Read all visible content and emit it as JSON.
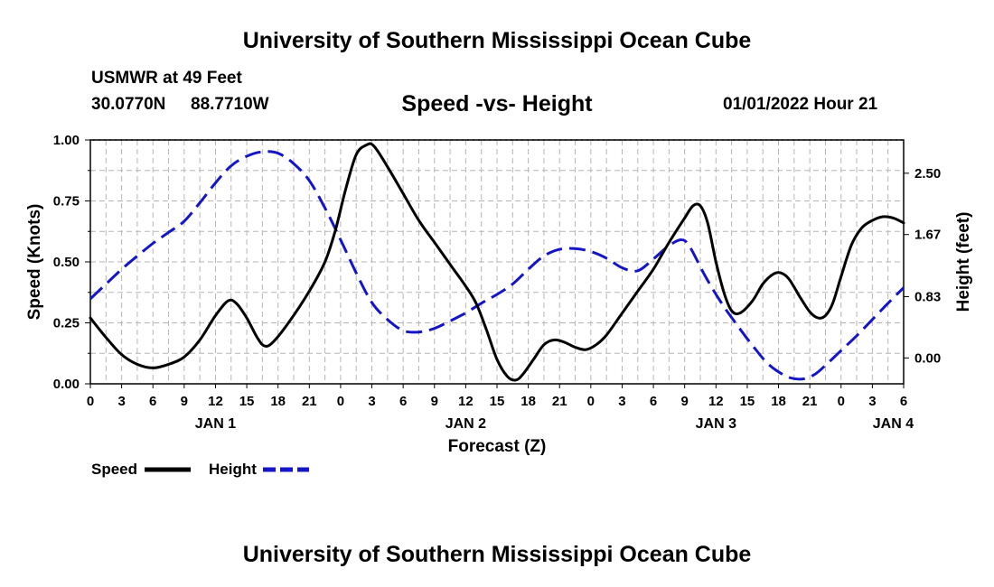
{
  "header": {
    "title": "University of Southern Mississippi Ocean Cube",
    "footer_title": "University of Southern Mississippi Ocean Cube",
    "station_name": "USMWR at 49 Feet",
    "station_lat": "30.0770N",
    "station_lon": "88.7710W",
    "subtitle": "Speed -vs- Height",
    "date": "01/01/2022 Hour 21"
  },
  "chart_data": {
    "type": "line",
    "title": "Speed -vs- Height",
    "xlabel": "Forecast (Z)",
    "ylabel": "Speed (Knots)",
    "y2label": "Height (feet)",
    "x_unit": "hours from 01/01 00Z",
    "xlim": [
      0,
      78
    ],
    "ylim": [
      0,
      1
    ],
    "y2lim": [
      -0.35,
      2.95
    ],
    "grid": true,
    "x_ticks": [
      {
        "x": 0,
        "label": "0"
      },
      {
        "x": 3,
        "label": "3"
      },
      {
        "x": 6,
        "label": "6"
      },
      {
        "x": 9,
        "label": "9"
      },
      {
        "x": 12,
        "label": "12"
      },
      {
        "x": 15,
        "label": "15"
      },
      {
        "x": 18,
        "label": "18"
      },
      {
        "x": 21,
        "label": "21"
      },
      {
        "x": 24,
        "label": "0"
      },
      {
        "x": 27,
        "label": "3"
      },
      {
        "x": 30,
        "label": "6"
      },
      {
        "x": 33,
        "label": "9"
      },
      {
        "x": 36,
        "label": "12"
      },
      {
        "x": 39,
        "label": "15"
      },
      {
        "x": 42,
        "label": "18"
      },
      {
        "x": 45,
        "label": "21"
      },
      {
        "x": 48,
        "label": "0"
      },
      {
        "x": 51,
        "label": "3"
      },
      {
        "x": 54,
        "label": "6"
      },
      {
        "x": 57,
        "label": "9"
      },
      {
        "x": 60,
        "label": "12"
      },
      {
        "x": 63,
        "label": "15"
      },
      {
        "x": 66,
        "label": "18"
      },
      {
        "x": 69,
        "label": "21"
      },
      {
        "x": 72,
        "label": "0"
      },
      {
        "x": 75,
        "label": "3"
      },
      {
        "x": 78,
        "label": "6"
      }
    ],
    "day_labels": [
      {
        "x": 12,
        "label": "JAN 1"
      },
      {
        "x": 36,
        "label": "JAN 2"
      },
      {
        "x": 60,
        "label": "JAN 3"
      },
      {
        "x": 77,
        "label": "JAN 4"
      }
    ],
    "y_ticks": [
      {
        "value": 0,
        "label": "0.00"
      },
      {
        "value": 0.25,
        "label": "0.25"
      },
      {
        "value": 0.5,
        "label": "0.50"
      },
      {
        "value": 0.75,
        "label": "0.75"
      },
      {
        "value": 1,
        "label": "1.00"
      }
    ],
    "y2_ticks": [
      {
        "value": 0,
        "label": "0.00"
      },
      {
        "value": 0.83,
        "label": "0.83"
      },
      {
        "value": 1.67,
        "label": "1.67"
      },
      {
        "value": 2.5,
        "label": "2.50"
      }
    ],
    "legend": [
      {
        "name": "Speed",
        "color": "#000000",
        "dash": "solid"
      },
      {
        "name": "Height",
        "color": "#1515c8",
        "dash": "dashed"
      }
    ],
    "series": [
      {
        "name": "Speed",
        "axis": "left",
        "color": "#000000",
        "points": [
          [
            0,
            0.27
          ],
          [
            1.5,
            0.19
          ],
          [
            3,
            0.12
          ],
          [
            4.5,
            0.08
          ],
          [
            6,
            0.065
          ],
          [
            7.5,
            0.08
          ],
          [
            9,
            0.11
          ],
          [
            10.5,
            0.18
          ],
          [
            12,
            0.28
          ],
          [
            13.2,
            0.34
          ],
          [
            14,
            0.33
          ],
          [
            15,
            0.27
          ],
          [
            16,
            0.19
          ],
          [
            16.7,
            0.155
          ],
          [
            17.5,
            0.17
          ],
          [
            19,
            0.25
          ],
          [
            21,
            0.38
          ],
          [
            22.5,
            0.5
          ],
          [
            23.5,
            0.63
          ],
          [
            24.5,
            0.8
          ],
          [
            25.5,
            0.94
          ],
          [
            26.5,
            0.98
          ],
          [
            27.2,
            0.975
          ],
          [
            28.5,
            0.89
          ],
          [
            30,
            0.78
          ],
          [
            31.5,
            0.67
          ],
          [
            33,
            0.58
          ],
          [
            34.5,
            0.49
          ],
          [
            36,
            0.4
          ],
          [
            37,
            0.33
          ],
          [
            38,
            0.22
          ],
          [
            39,
            0.1
          ],
          [
            40,
            0.03
          ],
          [
            40.8,
            0.015
          ],
          [
            41.5,
            0.04
          ],
          [
            42.5,
            0.1
          ],
          [
            43.5,
            0.16
          ],
          [
            44.5,
            0.18
          ],
          [
            45.5,
            0.17
          ],
          [
            46.5,
            0.15
          ],
          [
            47.5,
            0.14
          ],
          [
            48.5,
            0.16
          ],
          [
            49.5,
            0.2
          ],
          [
            51,
            0.29
          ],
          [
            52.5,
            0.38
          ],
          [
            54,
            0.47
          ],
          [
            55.5,
            0.58
          ],
          [
            57,
            0.68
          ],
          [
            57.8,
            0.73
          ],
          [
            58.5,
            0.73
          ],
          [
            59.2,
            0.66
          ],
          [
            60,
            0.5
          ],
          [
            60.8,
            0.37
          ],
          [
            61.5,
            0.3
          ],
          [
            62.3,
            0.29
          ],
          [
            63.5,
            0.34
          ],
          [
            64.5,
            0.41
          ],
          [
            65.5,
            0.45
          ],
          [
            66.2,
            0.455
          ],
          [
            67,
            0.43
          ],
          [
            68,
            0.36
          ],
          [
            69,
            0.295
          ],
          [
            69.8,
            0.27
          ],
          [
            70.5,
            0.28
          ],
          [
            71.2,
            0.33
          ],
          [
            72,
            0.44
          ],
          [
            73,
            0.57
          ],
          [
            74,
            0.64
          ],
          [
            75,
            0.67
          ],
          [
            76,
            0.685
          ],
          [
            77,
            0.68
          ],
          [
            78,
            0.66
          ]
        ]
      },
      {
        "name": "Height",
        "axis": "right",
        "color": "#1515c8",
        "points": [
          [
            0,
            0.8
          ],
          [
            1.5,
            1.0
          ],
          [
            3,
            1.2
          ],
          [
            4.5,
            1.38
          ],
          [
            6,
            1.55
          ],
          [
            7.5,
            1.7
          ],
          [
            9,
            1.85
          ],
          [
            10.5,
            2.1
          ],
          [
            12,
            2.37
          ],
          [
            13.5,
            2.6
          ],
          [
            15,
            2.73
          ],
          [
            16.5,
            2.79
          ],
          [
            18,
            2.77
          ],
          [
            19.5,
            2.63
          ],
          [
            21,
            2.4
          ],
          [
            22.5,
            2.03
          ],
          [
            24,
            1.6
          ],
          [
            25.5,
            1.15
          ],
          [
            27,
            0.75
          ],
          [
            28.5,
            0.52
          ],
          [
            30,
            0.37
          ],
          [
            31.5,
            0.35
          ],
          [
            33,
            0.4
          ],
          [
            34.5,
            0.5
          ],
          [
            36,
            0.61
          ],
          [
            37.5,
            0.74
          ],
          [
            39,
            0.86
          ],
          [
            40.5,
            1.0
          ],
          [
            42,
            1.2
          ],
          [
            43.5,
            1.38
          ],
          [
            45,
            1.47
          ],
          [
            46.5,
            1.48
          ],
          [
            48,
            1.44
          ],
          [
            49.5,
            1.35
          ],
          [
            51,
            1.22
          ],
          [
            52.5,
            1.18
          ],
          [
            54,
            1.34
          ],
          [
            55.5,
            1.52
          ],
          [
            56.7,
            1.6
          ],
          [
            57.5,
            1.5
          ],
          [
            59,
            1.1
          ],
          [
            60.5,
            0.75
          ],
          [
            62,
            0.45
          ],
          [
            63.5,
            0.17
          ],
          [
            65,
            -0.08
          ],
          [
            66.5,
            -0.23
          ],
          [
            67.5,
            -0.28
          ],
          [
            68.5,
            -0.28
          ],
          [
            69.5,
            -0.22
          ],
          [
            70.5,
            -0.1
          ],
          [
            72,
            0.1
          ],
          [
            73.5,
            0.3
          ],
          [
            75,
            0.52
          ],
          [
            76.5,
            0.74
          ],
          [
            78,
            0.95
          ]
        ]
      }
    ]
  }
}
